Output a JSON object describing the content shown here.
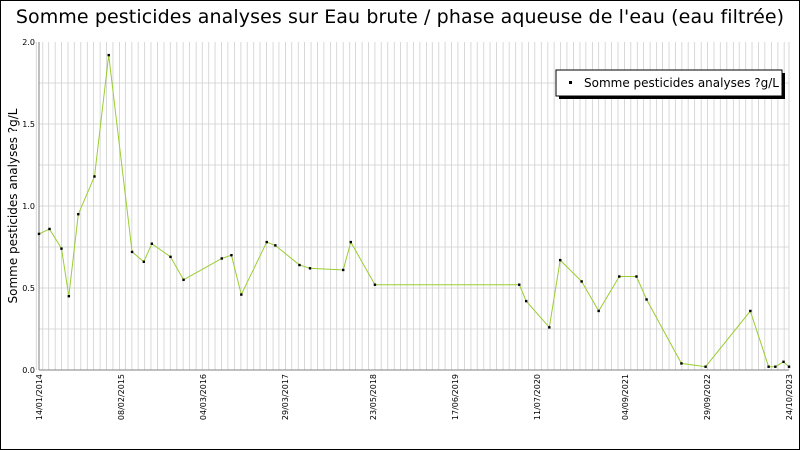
{
  "chart_data": {
    "type": "line",
    "title": "Somme pesticides analyses sur Eau brute / phase aqueuse de l'eau (eau filtrée)",
    "ylabel": "Somme pesticides analyses ?g/L",
    "xlabel": "",
    "ylim": [
      0,
      2.0
    ],
    "xlim": [
      "2014-01-14",
      "2023-10-24"
    ],
    "y_ticks": [
      "0.0",
      "0.5",
      "1.0",
      "1.5",
      "2.0"
    ],
    "x_ticks": [
      {
        "date": "2014-01-14",
        "label": "14/01/2014"
      },
      {
        "date": "2015-02-08",
        "label": "08/02/2015"
      },
      {
        "date": "2016-03-04",
        "label": "04/03/2016"
      },
      {
        "date": "2017-03-29",
        "label": "29/03/2017"
      },
      {
        "date": "2018-05-23",
        "label": "23/05/2018"
      },
      {
        "date": "2019-06-17",
        "label": "17/06/2019"
      },
      {
        "date": "2020-07-11",
        "label": "11/07/2020"
      },
      {
        "date": "2021-09-04",
        "label": "04/09/2021"
      },
      {
        "date": "2022-09-29",
        "label": "29/09/2022"
      },
      {
        "date": "2023-10-24",
        "label": "24/10/2023"
      }
    ],
    "grid": true,
    "legend_position": "top-right",
    "series": [
      {
        "name": "Somme pesticides analyses ?g/L",
        "color": "#9acd32",
        "marker_color": "#000000",
        "points": [
          {
            "x": "2014-01-14",
            "y": 0.83
          },
          {
            "x": "2014-03-05",
            "y": 0.86
          },
          {
            "x": "2014-05-01",
            "y": 0.74
          },
          {
            "x": "2014-06-05",
            "y": 0.45
          },
          {
            "x": "2014-07-20",
            "y": 0.95
          },
          {
            "x": "2014-10-05",
            "y": 1.18
          },
          {
            "x": "2014-12-12",
            "y": 1.92
          },
          {
            "x": "2015-04-02",
            "y": 0.72
          },
          {
            "x": "2015-05-28",
            "y": 0.66
          },
          {
            "x": "2015-07-05",
            "y": 0.77
          },
          {
            "x": "2015-10-02",
            "y": 0.69
          },
          {
            "x": "2015-12-03",
            "y": 0.55
          },
          {
            "x": "2016-06-02",
            "y": 0.68
          },
          {
            "x": "2016-07-18",
            "y": 0.7
          },
          {
            "x": "2016-09-03",
            "y": 0.46
          },
          {
            "x": "2017-01-02",
            "y": 0.78
          },
          {
            "x": "2017-02-12",
            "y": 0.76
          },
          {
            "x": "2017-06-07",
            "y": 0.64
          },
          {
            "x": "2017-07-27",
            "y": 0.62
          },
          {
            "x": "2018-01-01",
            "y": 0.61
          },
          {
            "x": "2018-02-06",
            "y": 0.78
          },
          {
            "x": "2018-06-01",
            "y": 0.52
          },
          {
            "x": "2020-04-18",
            "y": 0.52
          },
          {
            "x": "2020-05-21",
            "y": 0.42
          },
          {
            "x": "2020-09-08",
            "y": 0.26
          },
          {
            "x": "2020-10-30",
            "y": 0.67
          },
          {
            "x": "2021-02-09",
            "y": 0.54
          },
          {
            "x": "2021-05-01",
            "y": 0.36
          },
          {
            "x": "2021-08-07",
            "y": 0.57
          },
          {
            "x": "2021-10-28",
            "y": 0.57
          },
          {
            "x": "2021-12-15",
            "y": 0.43
          },
          {
            "x": "2022-05-30",
            "y": 0.04
          },
          {
            "x": "2022-09-22",
            "y": 0.02
          },
          {
            "x": "2023-04-23",
            "y": 0.36
          },
          {
            "x": "2023-07-19",
            "y": 0.02
          },
          {
            "x": "2023-08-20",
            "y": 0.02
          },
          {
            "x": "2023-09-28",
            "y": 0.05
          },
          {
            "x": "2023-10-24",
            "y": 0.02
          }
        ]
      }
    ]
  }
}
